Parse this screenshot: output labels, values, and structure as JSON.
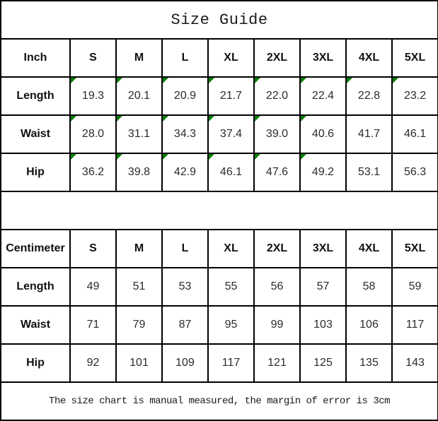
{
  "title": "Size Guide",
  "footer_note": "The size chart is manual measured, the margin of error is 3cm",
  "colors": {
    "border": "#000000",
    "background": "#ffffff",
    "header_text": "#111111",
    "value_text": "#2b2b2b",
    "flag_green": "#008000"
  },
  "inch_table": {
    "unit_label": "Inch",
    "size_headers": [
      "S",
      "M",
      "L",
      "XL",
      "2XL",
      "3XL",
      "4XL",
      "5XL"
    ],
    "rows": [
      {
        "label": "Length",
        "values": [
          "19.3",
          "20.1",
          "20.9",
          "21.7",
          "22.0",
          "22.4",
          "22.8",
          "23.2"
        ],
        "flags": [
          true,
          true,
          true,
          true,
          true,
          true,
          true,
          true
        ]
      },
      {
        "label": "Waist",
        "values": [
          "28.0",
          "31.1",
          "34.3",
          "37.4",
          "39.0",
          "40.6",
          "41.7",
          "46.1"
        ],
        "flags": [
          true,
          true,
          true,
          true,
          true,
          true,
          false,
          false
        ]
      },
      {
        "label": "Hip",
        "values": [
          "36.2",
          "39.8",
          "42.9",
          "46.1",
          "47.6",
          "49.2",
          "53.1",
          "56.3"
        ],
        "flags": [
          true,
          true,
          true,
          true,
          true,
          true,
          false,
          false
        ]
      }
    ]
  },
  "cm_table": {
    "unit_label": "Centimeter",
    "size_headers": [
      "S",
      "M",
      "L",
      "XL",
      "2XL",
      "3XL",
      "4XL",
      "5XL"
    ],
    "rows": [
      {
        "label": "Length",
        "values": [
          "49",
          "51",
          "53",
          "55",
          "56",
          "57",
          "58",
          "59"
        ],
        "flags": [
          false,
          false,
          false,
          false,
          false,
          false,
          false,
          false
        ]
      },
      {
        "label": "Waist",
        "values": [
          "71",
          "79",
          "87",
          "95",
          "99",
          "103",
          "106",
          "117"
        ],
        "flags": [
          false,
          false,
          false,
          false,
          false,
          false,
          false,
          false
        ]
      },
      {
        "label": "Hip",
        "values": [
          "92",
          "101",
          "109",
          "117",
          "121",
          "125",
          "135",
          "143"
        ],
        "flags": [
          false,
          false,
          false,
          false,
          false,
          false,
          false,
          false
        ]
      }
    ]
  },
  "chart_data": [
    {
      "type": "table",
      "title": "Size Guide",
      "unit": "Inch",
      "columns": [
        "S",
        "M",
        "L",
        "XL",
        "2XL",
        "3XL",
        "4XL",
        "5XL"
      ],
      "rows": [
        {
          "label": "Length",
          "values": [
            19.3,
            20.1,
            20.9,
            21.7,
            22.0,
            22.4,
            22.8,
            23.2
          ]
        },
        {
          "label": "Waist",
          "values": [
            28.0,
            31.1,
            34.3,
            37.4,
            39.0,
            40.6,
            41.7,
            46.1
          ]
        },
        {
          "label": "Hip",
          "values": [
            36.2,
            39.8,
            42.9,
            46.1,
            47.6,
            49.2,
            53.1,
            56.3
          ]
        }
      ]
    },
    {
      "type": "table",
      "title": "Size Guide",
      "unit": "Centimeter",
      "columns": [
        "S",
        "M",
        "L",
        "XL",
        "2XL",
        "3XL",
        "4XL",
        "5XL"
      ],
      "rows": [
        {
          "label": "Length",
          "values": [
            49,
            51,
            53,
            55,
            56,
            57,
            58,
            59
          ]
        },
        {
          "label": "Waist",
          "values": [
            71,
            79,
            87,
            95,
            99,
            103,
            106,
            117
          ]
        },
        {
          "label": "Hip",
          "values": [
            92,
            101,
            109,
            117,
            121,
            125,
            135,
            143
          ]
        }
      ]
    }
  ]
}
